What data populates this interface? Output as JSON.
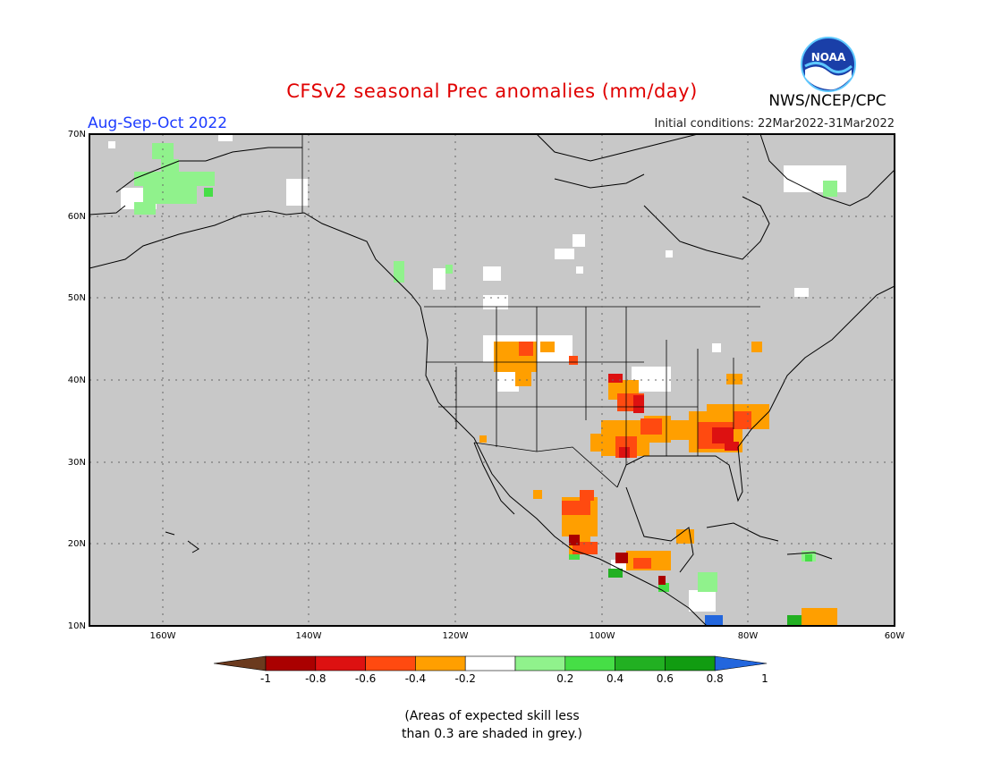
{
  "title": "CFSv2 seasonal Prec anomalies (mm/day)",
  "period": "Aug-Sep-Oct 2022",
  "initial_conditions": "Initial conditions: 22Mar2022-31Mar2022",
  "organization": "NWS/NCEP/CPC",
  "logo_text": "NOAA",
  "footnote_line1": "(Areas of expected skill less",
  "footnote_line2": "than 0.3 are shaded in grey.)",
  "map": {
    "background_color": "#c8c8c8",
    "x_ticks": [
      "160W",
      "140W",
      "120W",
      "100W",
      "80W",
      "60W"
    ],
    "y_ticks": [
      "10N",
      "20N",
      "30N",
      "40N",
      "50N",
      "60N",
      "70N"
    ]
  },
  "legend": {
    "labels": [
      "-1",
      "-0.8",
      "-0.6",
      "-0.4",
      "-0.2",
      "0.2",
      "0.4",
      "0.6",
      "0.8",
      "1"
    ],
    "colors": [
      "#6b3a1e",
      "#aa0000",
      "#dd1111",
      "#ff4a10",
      "#ff9f00",
      "#ffffff",
      "#90f28c",
      "#46de46",
      "#22b022",
      "#119c11",
      "#2266dd"
    ]
  }
}
